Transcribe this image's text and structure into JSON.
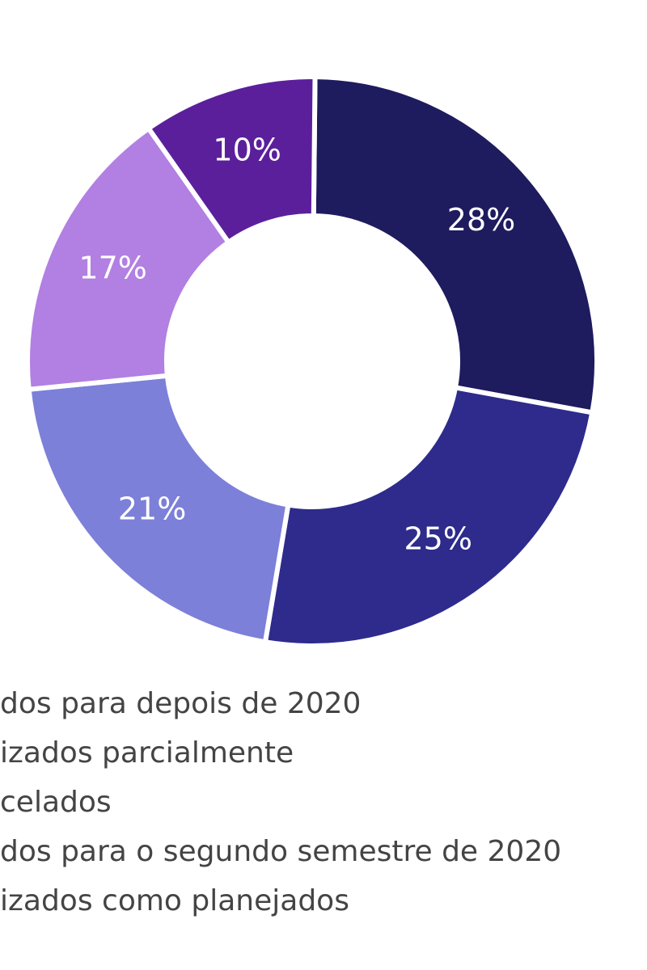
{
  "chart_data": {
    "type": "pie",
    "categories": [
      "dos para depois de 2020",
      "izados parcialmente",
      "celados",
      "dos para o segundo semestre de 2020",
      "izados como planejados"
    ],
    "values": [
      28,
      25,
      21,
      17,
      10
    ],
    "value_labels": [
      "28%",
      "25%",
      "21%",
      "17%",
      "10%"
    ],
    "colors": [
      "#1e1b5e",
      "#2e2b8c",
      "#7c80d8",
      "#b27fe2",
      "#5b1f9c"
    ]
  }
}
